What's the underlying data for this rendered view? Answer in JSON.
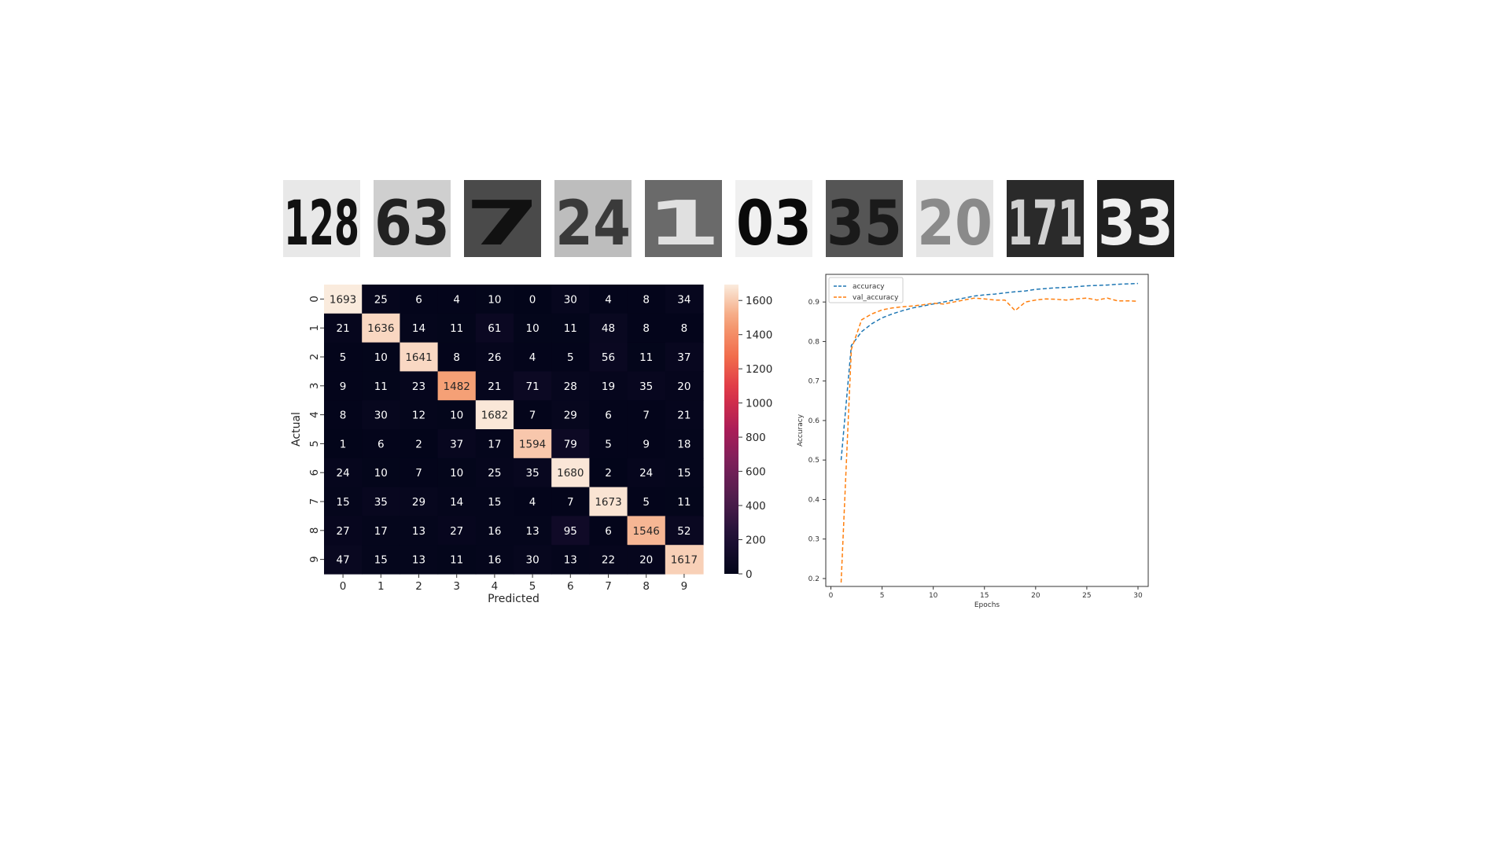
{
  "thumbnails": [
    {
      "label": "128",
      "bg": "#e8e8e8",
      "fg": "#111111"
    },
    {
      "label": "63",
      "bg": "#cfcfcf",
      "fg": "#222222"
    },
    {
      "label": "7",
      "bg": "#4a4a4a",
      "fg": "#111111"
    },
    {
      "label": "24",
      "bg": "#bdbdbd",
      "fg": "#3a3a3a"
    },
    {
      "label": "1",
      "bg": "#6a6a6a",
      "fg": "#e0e0e0"
    },
    {
      "label": "03",
      "bg": "#f0f0f0",
      "fg": "#0a0a0a"
    },
    {
      "label": "35",
      "bg": "#555555",
      "fg": "#1a1a1a"
    },
    {
      "label": "20",
      "bg": "#e6e6e6",
      "fg": "#8a8a8a"
    },
    {
      "label": "171",
      "bg": "#2a2a2a",
      "fg": "#d0d0d0"
    },
    {
      "label": "33",
      "bg": "#202020",
      "fg": "#f0f0f0"
    }
  ],
  "chart_data": [
    {
      "type": "heatmap",
      "xlabel": "Predicted",
      "ylabel": "Actual",
      "x_ticks": [
        "0",
        "1",
        "2",
        "3",
        "4",
        "5",
        "6",
        "7",
        "8",
        "9"
      ],
      "y_ticks": [
        "0",
        "1",
        "2",
        "3",
        "4",
        "5",
        "6",
        "7",
        "8",
        "9"
      ],
      "matrix": [
        [
          1693,
          25,
          6,
          4,
          10,
          0,
          30,
          4,
          8,
          34
        ],
        [
          21,
          1636,
          14,
          11,
          61,
          10,
          11,
          48,
          8,
          8
        ],
        [
          5,
          10,
          1641,
          8,
          26,
          4,
          5,
          56,
          11,
          37
        ],
        [
          9,
          11,
          23,
          1482,
          21,
          71,
          28,
          19,
          35,
          20
        ],
        [
          8,
          30,
          12,
          10,
          1682,
          7,
          29,
          6,
          7,
          21
        ],
        [
          1,
          6,
          2,
          37,
          17,
          1594,
          79,
          5,
          9,
          18
        ],
        [
          24,
          10,
          7,
          10,
          25,
          35,
          1680,
          2,
          24,
          15
        ],
        [
          15,
          35,
          29,
          14,
          15,
          4,
          7,
          1673,
          5,
          11
        ],
        [
          27,
          17,
          13,
          27,
          16,
          13,
          95,
          6,
          1546,
          52
        ],
        [
          47,
          15,
          13,
          11,
          16,
          30,
          13,
          22,
          20,
          1617
        ]
      ],
      "colorbar": {
        "min": 0,
        "max": 1693,
        "ticks": [
          0,
          200,
          400,
          600,
          800,
          1000,
          1200,
          1400,
          1600
        ]
      }
    },
    {
      "type": "line",
      "xlabel": "Epochs",
      "ylabel": "Accuracy",
      "xlim": [
        0,
        30
      ],
      "ylim": [
        0.18,
        0.97
      ],
      "x_ticks": [
        0,
        5,
        10,
        15,
        20,
        25,
        30
      ],
      "y_ticks": [
        0.2,
        0.3,
        0.4,
        0.5,
        0.6,
        0.7,
        0.8,
        0.9
      ],
      "legend_position": "top-left",
      "x": [
        1,
        2,
        3,
        4,
        5,
        6,
        7,
        8,
        9,
        10,
        11,
        12,
        13,
        14,
        15,
        16,
        17,
        18,
        19,
        20,
        21,
        22,
        23,
        24,
        25,
        26,
        27,
        28,
        29,
        30
      ],
      "series": [
        {
          "name": "accuracy",
          "color": "#1f77b4",
          "values": [
            0.5,
            0.79,
            0.825,
            0.845,
            0.86,
            0.87,
            0.878,
            0.885,
            0.89,
            0.895,
            0.9,
            0.905,
            0.91,
            0.915,
            0.918,
            0.92,
            0.923,
            0.926,
            0.928,
            0.932,
            0.934,
            0.936,
            0.937,
            0.939,
            0.941,
            0.942,
            0.943,
            0.945,
            0.946,
            0.947
          ]
        },
        {
          "name": "val_accuracy",
          "color": "#ff7f0e",
          "values": [
            0.19,
            0.78,
            0.855,
            0.87,
            0.88,
            0.885,
            0.888,
            0.89,
            0.893,
            0.897,
            0.895,
            0.9,
            0.905,
            0.91,
            0.908,
            0.905,
            0.905,
            0.878,
            0.9,
            0.905,
            0.908,
            0.907,
            0.905,
            0.908,
            0.91,
            0.905,
            0.91,
            0.903,
            0.903,
            0.902
          ]
        }
      ]
    }
  ]
}
